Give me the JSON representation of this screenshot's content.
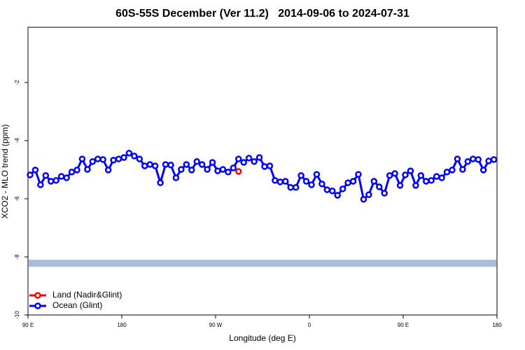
{
  "chart_data": {
    "type": "line",
    "title": "60S-55S December (Ver 11.2)   2014-09-06 to 2024-07-31",
    "xlabel": "Longitude (deg E)",
    "ylabel": "XCO2 - MLO trend (ppm)",
    "xlim": [
      90,
      540
    ],
    "ylim": [
      -10,
      -0.1
    ],
    "xticks": [
      {
        "value": 90,
        "label": "90 E"
      },
      {
        "value": 180,
        "label": "180"
      },
      {
        "value": 270,
        "label": "90 W"
      },
      {
        "value": 360,
        "label": "0"
      },
      {
        "value": 450,
        "label": "90 E"
      },
      {
        "value": 540,
        "label": "180"
      }
    ],
    "yticks": [
      -10,
      -8,
      -6,
      -4,
      -2
    ],
    "band": {
      "ylim": [
        -8.34,
        -8.1
      ],
      "color": "#a6bddb"
    },
    "legend": "bottom-left",
    "series": [
      {
        "name": "Land (Nadir&Glint)",
        "color": "#ff0000",
        "x": [
          292
        ],
        "values": [
          -5.06
        ]
      },
      {
        "name": "Ocean (Glint)",
        "color": "#0000ff",
        "x": [
          92,
          97,
          102,
          107,
          112,
          117,
          122,
          127,
          132,
          137,
          142,
          147,
          152,
          157,
          162,
          167,
          172,
          177,
          182,
          187,
          192,
          197,
          202,
          207,
          212,
          217,
          222,
          227,
          232,
          237,
          242,
          247,
          252,
          257,
          262,
          267,
          272,
          277,
          282,
          287,
          292,
          297,
          302,
          307,
          312,
          317,
          322,
          327,
          332,
          337,
          342,
          347,
          352,
          357,
          362,
          367,
          372,
          377,
          382,
          387,
          392,
          397,
          402,
          407,
          412,
          417,
          422,
          427,
          432,
          437,
          442,
          447,
          452,
          457,
          462,
          467,
          472,
          477,
          482,
          487,
          492,
          497,
          502,
          507,
          512,
          517,
          522,
          527,
          532,
          537
        ],
        "values": [
          -5.18,
          -5.01,
          -5.52,
          -5.2,
          -5.4,
          -5.37,
          -5.23,
          -5.28,
          -5.08,
          -5.01,
          -4.63,
          -4.99,
          -4.72,
          -4.63,
          -4.65,
          -5.01,
          -4.67,
          -4.63,
          -4.58,
          -4.43,
          -4.53,
          -4.63,
          -4.87,
          -4.82,
          -4.87,
          -5.45,
          -4.82,
          -4.84,
          -5.28,
          -4.99,
          -4.82,
          -5.01,
          -4.72,
          -4.82,
          -4.99,
          -4.75,
          -5.04,
          -4.99,
          -5.08,
          -4.94,
          -4.63,
          -4.75,
          -4.6,
          -4.72,
          -4.58,
          -4.89,
          -4.87,
          -5.37,
          -5.42,
          -5.4,
          -5.61,
          -5.61,
          -5.2,
          -5.4,
          -5.52,
          -5.16,
          -5.49,
          -5.69,
          -5.73,
          -5.88,
          -5.66,
          -5.45,
          -5.4,
          -5.16,
          -6.02,
          -5.86,
          -5.4,
          -5.59,
          -5.81,
          -5.2,
          -5.13,
          -5.54,
          -5.18,
          -5.04,
          -5.54,
          -5.2,
          -5.4,
          -5.37,
          -5.23,
          -5.28,
          -5.08,
          -5.01,
          -4.63,
          -4.99,
          -4.72,
          -4.63,
          -4.65,
          -5.01,
          -4.7,
          -4.65
        ]
      }
    ]
  }
}
